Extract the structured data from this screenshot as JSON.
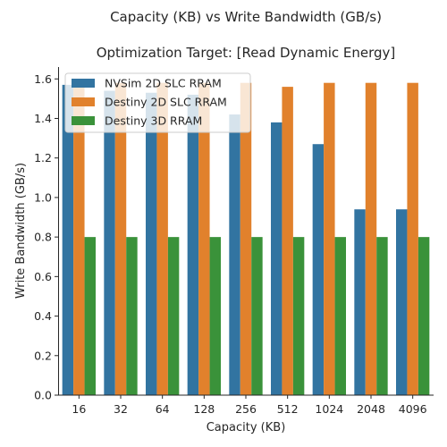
{
  "chart_data": {
    "type": "bar",
    "title": "Capacity (KB) vs Write Bandwidth (GB/s)",
    "subtitle": "Optimization Target: [Read Dynamic Energy]",
    "xlabel": "Capacity (KB)",
    "ylabel": "Write Bandwidth (GB/s)",
    "ylim": [
      0,
      1.66
    ],
    "yticks": [
      "0.0",
      "0.2",
      "0.4",
      "0.6",
      "0.8",
      "1.0",
      "1.2",
      "1.4",
      "1.6"
    ],
    "categories": [
      "16",
      "32",
      "64",
      "128",
      "256",
      "512",
      "1024",
      "2048",
      "4096"
    ],
    "legend_position": "top-left",
    "grid": false,
    "series": [
      {
        "name": "NVSim 2D SLC RRAM",
        "color": "#3274a1",
        "values": [
          1.57,
          1.54,
          1.53,
          1.52,
          1.42,
          1.38,
          1.27,
          0.94,
          0.94
        ]
      },
      {
        "name": "Destiny 2D SLC RRAM",
        "color": "#e1812c",
        "values": [
          1.58,
          1.58,
          1.58,
          1.58,
          1.58,
          1.56,
          1.58,
          1.58,
          1.58
        ]
      },
      {
        "name": "Destiny 3D RRAM",
        "color": "#3a923a",
        "values": [
          0.8,
          0.8,
          0.8,
          0.8,
          0.8,
          0.8,
          0.8,
          0.8,
          0.8
        ]
      }
    ]
  }
}
